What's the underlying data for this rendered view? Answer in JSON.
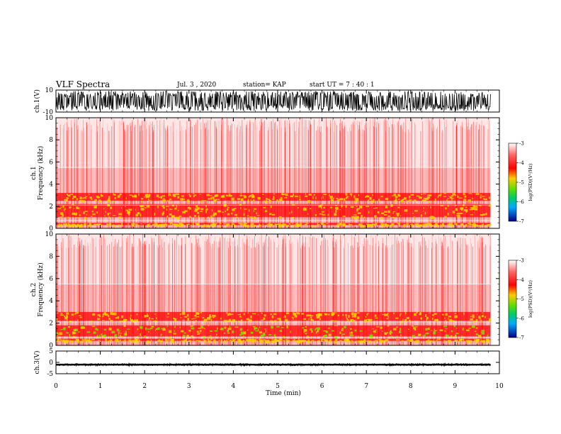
{
  "header": {
    "title": "VLF Spectra",
    "date": "Jul. 3 , 2020",
    "station": "station= KAP",
    "start": "start UT = 7 : 40 : 1"
  },
  "colors": {
    "spectro_low": "#ff0000",
    "spectro_mid": "#ffd400",
    "spectro_green": "#7fe000",
    "background": "#ffffff",
    "waveform": "#000000"
  },
  "chart_data": [
    {
      "type": "line",
      "panel": "ch1-waveform",
      "ylabel": "ch.1(V)",
      "ylim": [
        -10,
        10
      ],
      "y_ticks": [
        "10",
        "-10"
      ],
      "x_range": [
        0,
        10
      ],
      "x_active": [
        0,
        9.8
      ],
      "amplitude_band_v": [
        -9,
        9
      ]
    },
    {
      "type": "heatmap",
      "panel": "ch1-spectrogram",
      "ylabel": "ch.1\nFrequency (kHz)",
      "ylim": [
        0,
        10
      ],
      "y_ticks": [
        "0",
        "2",
        "4",
        "6",
        "8",
        "10"
      ],
      "x_range": [
        0,
        10
      ],
      "x_active": [
        0,
        9.8
      ],
      "strong_bands_khz": [
        [
          0.3,
          0.5
        ],
        [
          1.0,
          2.2
        ],
        [
          2.5,
          3.2
        ]
      ],
      "colorbar": {
        "label": "log(PSD)(V²/Hz)",
        "range": [
          -7,
          -3
        ],
        "ticks": [
          "-3",
          "-4",
          "-5",
          "-6",
          "-7"
        ]
      }
    },
    {
      "type": "heatmap",
      "panel": "ch2-spectrogram",
      "ylabel": "ch.2\nFrequency (kHz)",
      "ylim": [
        0,
        10
      ],
      "y_ticks": [
        "0",
        "2",
        "4",
        "6",
        "8",
        "10"
      ],
      "x_range": [
        0,
        10
      ],
      "x_active": [
        0,
        9.8
      ],
      "strong_bands_khz": [
        [
          0.4,
          0.6
        ],
        [
          0.8,
          1.8
        ],
        [
          2.2,
          3.0
        ]
      ],
      "colorbar": {
        "label": "log(PSD)(V²/Hz)",
        "range": [
          -7,
          -3
        ],
        "ticks": [
          "-3",
          "-4",
          "-5",
          "-6",
          "-7"
        ]
      }
    },
    {
      "type": "line",
      "panel": "ch3-waveform",
      "ylabel": "ch.3(V)",
      "ylim": [
        -5,
        5
      ],
      "y_ticks": [
        "5",
        "0",
        "-5"
      ],
      "x_range": [
        0,
        10
      ],
      "x_active": [
        0,
        9.8
      ],
      "amplitude_band_v": [
        -1.4,
        -0.6
      ]
    }
  ],
  "x_axis": {
    "label": "Time (min)",
    "ticks": [
      "0",
      "1",
      "2",
      "3",
      "4",
      "5",
      "6",
      "7",
      "8",
      "9",
      "10"
    ]
  }
}
